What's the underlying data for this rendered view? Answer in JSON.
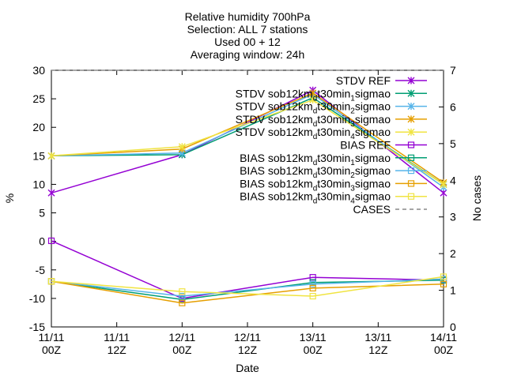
{
  "chart_data": {
    "type": "line",
    "title_lines": [
      "Relative humidity 700hPa",
      "Selection: ALL      7 stations",
      "Used 00 + 12",
      "Averaging window: 24h"
    ],
    "xlabel": "Date",
    "ylabel": "%",
    "y2label": "No cases",
    "x_ticks": [
      [
        "11/11",
        "00Z"
      ],
      [
        "11/11",
        "12Z"
      ],
      [
        "12/11",
        "00Z"
      ],
      [
        "12/11",
        "12Z"
      ],
      [
        "13/11",
        "00Z"
      ],
      [
        "13/11",
        "12Z"
      ],
      [
        "14/11",
        "00Z"
      ]
    ],
    "x": [
      0,
      2,
      4,
      6
    ],
    "ylim": [
      -15,
      30
    ],
    "yticks": [
      -15,
      -10,
      -5,
      0,
      5,
      10,
      15,
      20,
      25,
      30
    ],
    "y2lim": [
      0,
      7
    ],
    "y2ticks": [
      0,
      1,
      2,
      3,
      4,
      5,
      6,
      7
    ],
    "grid": false,
    "legend_position": "top-right",
    "series": [
      {
        "legend": [
          "STDV REF"
        ],
        "color": "#9400D3",
        "marker": "x-star",
        "axis": "y",
        "values": [
          8.5,
          15.2,
          26.5,
          8.5
        ]
      },
      {
        "legend": [
          "STDV sob12km",
          "d",
          "t30min",
          "1",
          "sigmao"
        ],
        "color": "#009E73",
        "marker": "x-star",
        "axis": "y",
        "values": [
          15.0,
          15.2,
          25.2,
          10.0
        ]
      },
      {
        "legend": [
          "STDV sob12km",
          "d",
          "t30min",
          "2",
          "sigmao"
        ],
        "color": "#56B4E9",
        "marker": "x-star",
        "axis": "y",
        "values": [
          15.0,
          15.5,
          25.8,
          9.5
        ]
      },
      {
        "legend": [
          "STDV sob12km",
          "d",
          "t30min",
          "3",
          "sigmao"
        ],
        "color": "#E69F00",
        "marker": "x-star",
        "axis": "y",
        "values": [
          15.0,
          16.2,
          26.0,
          10.3
        ]
      },
      {
        "legend": [
          "STDV sob12km",
          "d",
          "t30min",
          "4",
          "sigmao"
        ],
        "color": "#F0E442",
        "marker": "x-star",
        "axis": "y",
        "values": [
          15.0,
          16.6,
          24.8,
          10.0
        ]
      },
      {
        "legend": [
          "BIAS REF"
        ],
        "color": "#9400D3",
        "marker": "square",
        "axis": "y",
        "values": [
          0.1,
          -10.0,
          -6.3,
          -6.8
        ]
      },
      {
        "legend": [
          "BIAS sob12km",
          "d",
          "t30min",
          "1",
          "sigmao"
        ],
        "color": "#009E73",
        "marker": "square",
        "axis": "y",
        "values": [
          -7.0,
          -10.2,
          -7.2,
          -6.8
        ]
      },
      {
        "legend": [
          "BIAS sob12km",
          "d",
          "t30min",
          "2",
          "sigmao"
        ],
        "color": "#56B4E9",
        "marker": "square",
        "axis": "y",
        "values": [
          -7.0,
          -9.6,
          -7.5,
          -6.6
        ]
      },
      {
        "legend": [
          "BIAS sob12km",
          "d",
          "t30min",
          "3",
          "sigmao"
        ],
        "color": "#E69F00",
        "marker": "square",
        "axis": "y",
        "values": [
          -7.0,
          -10.8,
          -8.2,
          -7.5
        ]
      },
      {
        "legend": [
          "BIAS sob12km",
          "d",
          "t30min",
          "4",
          "sigmao"
        ],
        "color": "#F0E442",
        "marker": "square",
        "axis": "y",
        "values": [
          -7.0,
          -8.8,
          -9.6,
          -6.2
        ]
      },
      {
        "legend": [
          "CASES"
        ],
        "color": "#888888",
        "marker": "none",
        "dashed": true,
        "axis": "y2",
        "values": [
          7,
          7,
          7,
          7
        ]
      }
    ]
  }
}
